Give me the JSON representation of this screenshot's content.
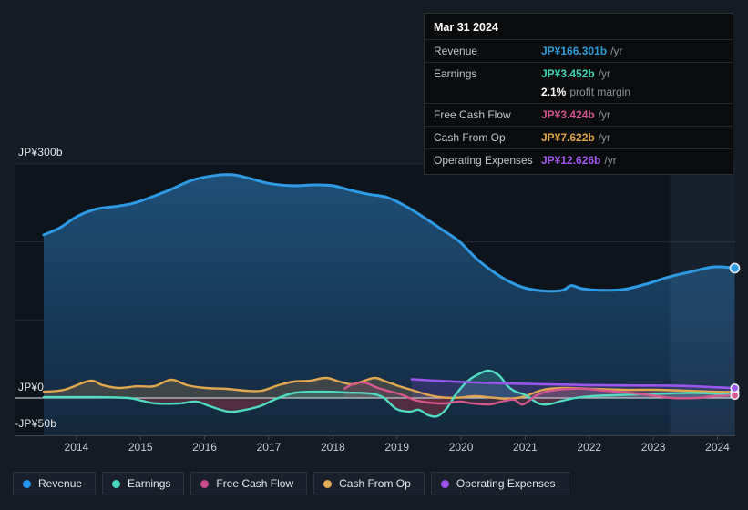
{
  "tooltip": {
    "date": "Mar 31 2024",
    "rows": [
      {
        "label": "Revenue",
        "value": "JP¥166.301b",
        "suffix": "/yr",
        "color": "#2d9cdb"
      },
      {
        "label": "Earnings",
        "value": "JP¥3.452b",
        "suffix": "/yr",
        "color": "#43d6b5"
      },
      {
        "label": "",
        "value": "2.1%",
        "suffix": "profit margin",
        "color": "#ffffff"
      },
      {
        "label": "Free Cash Flow",
        "value": "JP¥3.424b",
        "suffix": "/yr",
        "color": "#d1538d"
      },
      {
        "label": "Cash From Op",
        "value": "JP¥7.622b",
        "suffix": "/yr",
        "color": "#e3a64a"
      },
      {
        "label": "Operating Expenses",
        "value": "JP¥12.626b",
        "suffix": "/yr",
        "color": "#a159ef"
      }
    ]
  },
  "legend": {
    "items": [
      {
        "label": "Revenue",
        "color": "#2196f3"
      },
      {
        "label": "Earnings",
        "color": "#45d7bc"
      },
      {
        "label": "Free Cash Flow",
        "color": "#c9488a"
      },
      {
        "label": "Cash From Op",
        "color": "#e4ab55"
      },
      {
        "label": "Operating Expenses",
        "color": "#9b4fe8"
      }
    ]
  },
  "chart_data": {
    "type": "line",
    "unit": "JP¥ billions per year",
    "x_domain": [
      2013.49,
      2024.27
    ],
    "ylim": [
      -50,
      310
    ],
    "grid": "horizontal",
    "legend_position": "bottom-left",
    "x_ticks": [
      2014,
      2015,
      2016,
      2017,
      2018,
      2019,
      2020,
      2021,
      2022,
      2023,
      2024
    ],
    "y_axis_labels": [
      {
        "text": "JP¥300b",
        "value": 300
      },
      {
        "text": "JP¥0",
        "value": 0
      },
      {
        "text": "-JP¥50b",
        "value": -50
      }
    ],
    "y_gridlines": [
      300,
      200,
      100
    ],
    "highlight_band_years": [
      2023.26,
      2024.28
    ],
    "series": [
      {
        "name": "Revenue",
        "color": "#2e9be6",
        "fill": "to_bottom",
        "width": 3,
        "points": [
          [
            2013.49,
            209
          ],
          [
            2013.74,
            218
          ],
          [
            2014.02,
            233
          ],
          [
            2014.31,
            242
          ],
          [
            2014.66,
            246
          ],
          [
            2014.95,
            251
          ],
          [
            2015.44,
            266
          ],
          [
            2015.8,
            279
          ],
          [
            2016.15,
            285
          ],
          [
            2016.44,
            286
          ],
          [
            2016.72,
            281
          ],
          [
            2017.0,
            275
          ],
          [
            2017.36,
            272
          ],
          [
            2017.71,
            273
          ],
          [
            2018.0,
            272
          ],
          [
            2018.28,
            266
          ],
          [
            2018.56,
            261
          ],
          [
            2018.85,
            257
          ],
          [
            2019.13,
            246
          ],
          [
            2019.41,
            232
          ],
          [
            2019.7,
            216
          ],
          [
            2019.98,
            200
          ],
          [
            2020.26,
            177
          ],
          [
            2020.55,
            159
          ],
          [
            2020.83,
            146
          ],
          [
            2021.04,
            140
          ],
          [
            2021.33,
            137
          ],
          [
            2021.58,
            138
          ],
          [
            2021.72,
            144
          ],
          [
            2021.89,
            140
          ],
          [
            2022.18,
            138
          ],
          [
            2022.53,
            139
          ],
          [
            2022.89,
            146
          ],
          [
            2023.24,
            155
          ],
          [
            2023.6,
            162
          ],
          [
            2023.95,
            168
          ],
          [
            2024.27,
            166.301
          ]
        ]
      },
      {
        "name": "Cash From Op",
        "color": "#e4a74e",
        "fill": "to_zero",
        "width": 2.4,
        "points": [
          [
            2013.49,
            8
          ],
          [
            2013.81,
            10.5
          ],
          [
            2014.21,
            22
          ],
          [
            2014.41,
            16.3
          ],
          [
            2014.66,
            12.8
          ],
          [
            2014.95,
            15
          ],
          [
            2015.21,
            15
          ],
          [
            2015.48,
            23.3
          ],
          [
            2015.73,
            16.3
          ],
          [
            2016.01,
            12.8
          ],
          [
            2016.34,
            11.7
          ],
          [
            2016.65,
            9.3
          ],
          [
            2016.89,
            9.3
          ],
          [
            2017.15,
            16.3
          ],
          [
            2017.39,
            21
          ],
          [
            2017.64,
            22
          ],
          [
            2017.89,
            25.7
          ],
          [
            2018.1,
            21
          ],
          [
            2018.3,
            17.5
          ],
          [
            2018.49,
            22
          ],
          [
            2018.66,
            25.7
          ],
          [
            2018.83,
            21
          ],
          [
            2019.03,
            15.2
          ],
          [
            2019.27,
            9.3
          ],
          [
            2019.51,
            3.5
          ],
          [
            2019.74,
            0.5
          ],
          [
            2019.98,
            0.5
          ],
          [
            2020.22,
            2.3
          ],
          [
            2020.48,
            0.5
          ],
          [
            2020.73,
            -1
          ],
          [
            2020.97,
            1.5
          ],
          [
            2021.28,
            10.5
          ],
          [
            2021.61,
            12.8
          ],
          [
            2022.04,
            11.7
          ],
          [
            2022.53,
            10.5
          ],
          [
            2023.03,
            10.5
          ],
          [
            2023.53,
            9.3
          ],
          [
            2023.88,
            8.2
          ],
          [
            2024.27,
            7.622
          ]
        ]
      },
      {
        "name": "Earnings",
        "color": "#4fdcc3",
        "fill": "to_zero",
        "width": 2.4,
        "points": [
          [
            2013.49,
            1
          ],
          [
            2013.95,
            1
          ],
          [
            2014.38,
            1
          ],
          [
            2014.81,
            0
          ],
          [
            2015.02,
            -3.5
          ],
          [
            2015.24,
            -7
          ],
          [
            2015.59,
            -7
          ],
          [
            2015.87,
            -4.7
          ],
          [
            2016.08,
            -10.5
          ],
          [
            2016.37,
            -17.5
          ],
          [
            2016.58,
            -16
          ],
          [
            2016.86,
            -10.5
          ],
          [
            2017.15,
            0
          ],
          [
            2017.43,
            7
          ],
          [
            2017.86,
            8
          ],
          [
            2018.21,
            7
          ],
          [
            2018.56,
            6
          ],
          [
            2018.78,
            1
          ],
          [
            2018.99,
            -14
          ],
          [
            2019.2,
            -17.5
          ],
          [
            2019.34,
            -15
          ],
          [
            2019.49,
            -22
          ],
          [
            2019.63,
            -23.3
          ],
          [
            2019.77,
            -14
          ],
          [
            2019.91,
            3.5
          ],
          [
            2020.08,
            20
          ],
          [
            2020.26,
            30
          ],
          [
            2020.43,
            35
          ],
          [
            2020.59,
            29
          ],
          [
            2020.72,
            16
          ],
          [
            2020.83,
            9
          ],
          [
            2021.01,
            3.5
          ],
          [
            2021.21,
            -7
          ],
          [
            2021.37,
            -8
          ],
          [
            2021.58,
            -3.5
          ],
          [
            2021.78,
            0
          ],
          [
            2022.04,
            2.5
          ],
          [
            2022.39,
            3.5
          ],
          [
            2022.75,
            4.5
          ],
          [
            2023.1,
            5.5
          ],
          [
            2023.53,
            6.5
          ],
          [
            2023.88,
            6
          ],
          [
            2024.27,
            3.452
          ]
        ]
      },
      {
        "name": "Free Cash Flow",
        "color": "#d6568e",
        "fill": "to_zero",
        "width": 2.4,
        "points": [
          [
            2018.18,
            12
          ],
          [
            2018.35,
            19
          ],
          [
            2018.52,
            19
          ],
          [
            2018.7,
            13
          ],
          [
            2018.85,
            9.3
          ],
          [
            2019.06,
            4.7
          ],
          [
            2019.27,
            -2.3
          ],
          [
            2019.49,
            -5.8
          ],
          [
            2019.74,
            -7
          ],
          [
            2019.98,
            -4.7
          ],
          [
            2020.19,
            -7
          ],
          [
            2020.45,
            -8.2
          ],
          [
            2020.69,
            -3.5
          ],
          [
            2020.83,
            -2.3
          ],
          [
            2020.97,
            -8.2
          ],
          [
            2021.18,
            3.5
          ],
          [
            2021.4,
            9.3
          ],
          [
            2021.68,
            11.7
          ],
          [
            2021.96,
            11.7
          ],
          [
            2022.25,
            9.3
          ],
          [
            2022.6,
            7
          ],
          [
            2022.96,
            3.5
          ],
          [
            2023.31,
            0
          ],
          [
            2023.67,
            0
          ],
          [
            2023.95,
            2.3
          ],
          [
            2024.27,
            3.424
          ]
        ]
      },
      {
        "name": "Operating Expenses",
        "color": "#9a55ec",
        "fill": "to_zero",
        "width": 2.6,
        "points": [
          [
            2019.23,
            24
          ],
          [
            2019.63,
            22
          ],
          [
            2020.19,
            20
          ],
          [
            2020.76,
            18.5
          ],
          [
            2021.33,
            17.5
          ],
          [
            2022.04,
            16.5
          ],
          [
            2022.75,
            16
          ],
          [
            2023.46,
            15.5
          ],
          [
            2024.27,
            12.626
          ]
        ]
      }
    ]
  }
}
